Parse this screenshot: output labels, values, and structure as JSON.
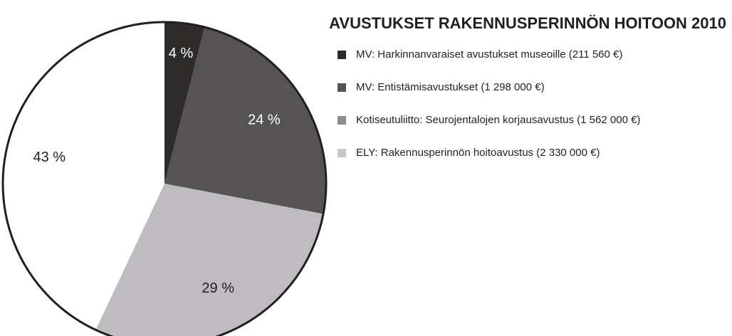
{
  "chart_data": {
    "type": "pie",
    "title": "AVUSTUKSET RAKENNUSPERINNÖN HOITOON 2010",
    "categories": [
      "MV: Harkinnanvaraiset avustukset museoille (211 560 €)",
      "MV: Entistämisavustukset (1 298 000 €)",
      "Kotiseutuliitto: Seurojentalojen korjausavustus (1 562 000 €)",
      "ELY: Rakennusperinnön hoitoavustus (2 330 000 €)"
    ],
    "values": [
      4,
      24,
      29,
      43
    ],
    "value_labels": [
      "4 %",
      "24 %",
      "29 %",
      "43 %"
    ],
    "colors": [
      "#2e2b2b",
      "#555354",
      "#bebcc0",
      "#ffffff"
    ],
    "legend_colors": [
      "#2e2b2b",
      "#555354",
      "#8e8d8f",
      "#c8c7cb"
    ]
  }
}
